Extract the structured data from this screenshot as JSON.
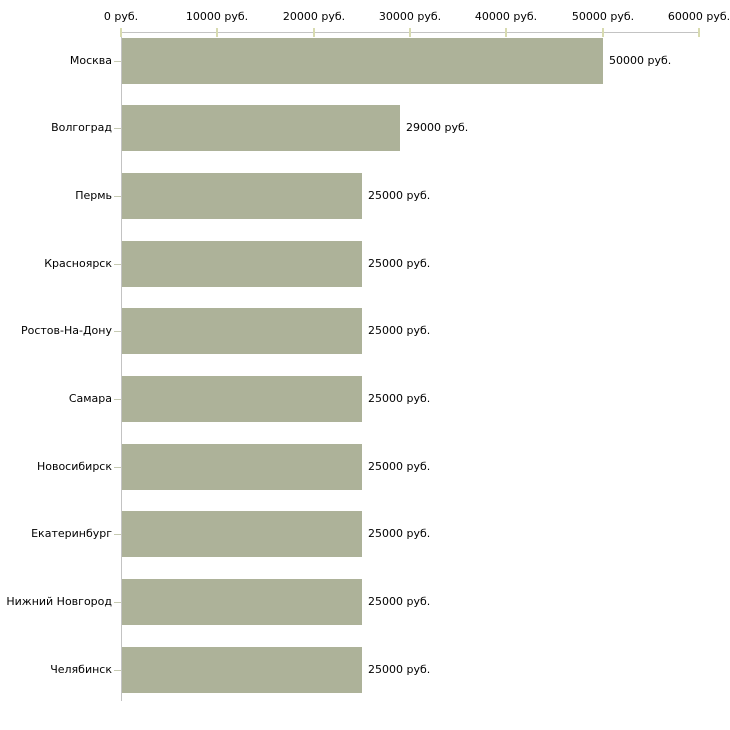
{
  "chart_data": {
    "type": "bar",
    "orientation": "horizontal",
    "title": "",
    "categories": [
      "Москва",
      "Волгоград",
      "Пермь",
      "Красноярск",
      "Ростов-На-Дону",
      "Самара",
      "Новосибирск",
      "Екатеринбург",
      "Нижний Новгород",
      "Челябинск"
    ],
    "values": [
      50000,
      29000,
      25000,
      25000,
      25000,
      25000,
      25000,
      25000,
      25000,
      25000
    ],
    "value_labels": [
      "50000 руб.",
      "29000 руб.",
      "25000 руб.",
      "25000 руб.",
      "25000 руб.",
      "25000 руб.",
      "25000 руб.",
      "25000 руб.",
      "25000 руб.",
      "25000 руб."
    ],
    "x_tick_values": [
      0,
      10000,
      20000,
      30000,
      40000,
      50000,
      60000
    ],
    "x_tick_labels": [
      "0 руб.",
      "10000 руб.",
      "20000 руб.",
      "30000 руб.",
      "40000 руб.",
      "50000 руб.",
      "60000 руб."
    ],
    "xlim": [
      0,
      60000
    ],
    "unit": "руб.",
    "grid": false,
    "legend": false,
    "colors": {
      "bar": "#adb299",
      "axis_line": "#c3c3c3",
      "axis_tick": "#d8dbb0",
      "category_tick": "#c6cab2",
      "text": "#000000",
      "background": "#ffffff"
    }
  }
}
